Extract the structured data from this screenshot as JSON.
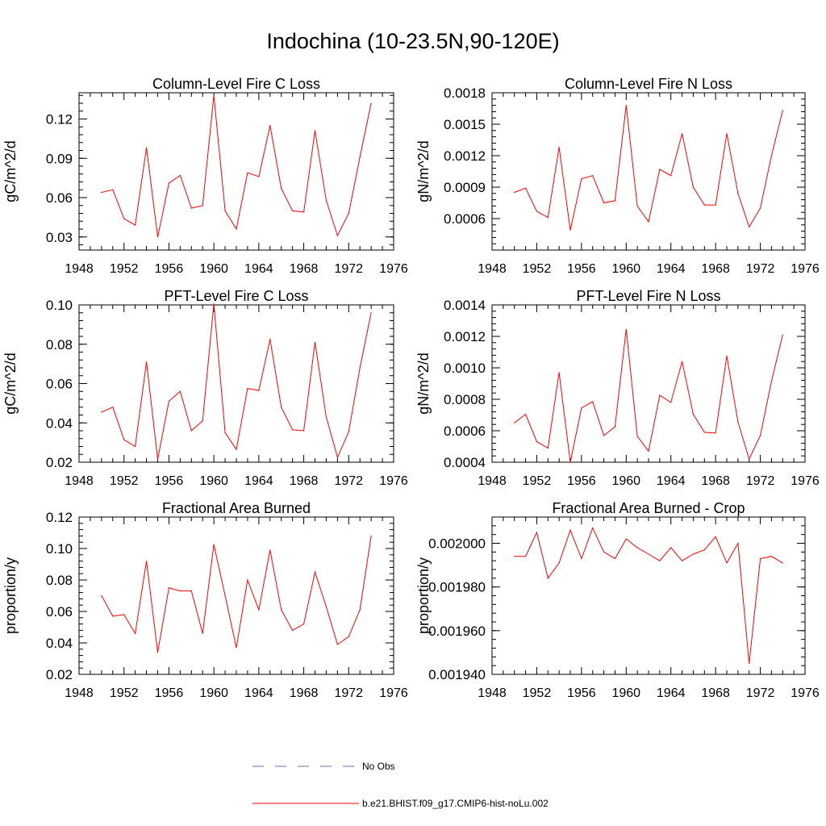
{
  "title": "Indochina (10-23.5N,90-120E)",
  "series_color": "#ff0000",
  "obs_color": "#6670b0",
  "legend": [
    {
      "label": "No Obs",
      "style": "dashed"
    },
    {
      "label": "b.e21.BHIST.f09_g17.CMIP6-hist-noLu.002",
      "style": "solid"
    }
  ],
  "chart_data": [
    {
      "type": "line",
      "title": "Column-Level Fire C Loss",
      "ylabel": "gC/m^2/d",
      "xlim": [
        1948,
        1976
      ],
      "ylim": [
        0.02,
        0.14
      ],
      "xticks": [
        "1948",
        "1952",
        "1956",
        "1960",
        "1964",
        "1968",
        "1972",
        "1976"
      ],
      "yticks": [
        "0.03",
        "0.06",
        "0.09",
        "0.12"
      ],
      "ytick_values": [
        0.03,
        0.06,
        0.09,
        0.12
      ],
      "x": [
        1950,
        1951,
        1952,
        1953,
        1954,
        1955,
        1956,
        1957,
        1958,
        1959,
        1960,
        1961,
        1962,
        1963,
        1964,
        1965,
        1966,
        1967,
        1968,
        1969,
        1970,
        1971,
        1972,
        1973,
        1974
      ],
      "values": [
        0.064,
        0.066,
        0.044,
        0.039,
        0.098,
        0.03,
        0.071,
        0.077,
        0.052,
        0.054,
        0.138,
        0.05,
        0.036,
        0.079,
        0.076,
        0.115,
        0.067,
        0.05,
        0.049,
        0.111,
        0.058,
        0.031,
        0.048,
        0.091,
        0.132
      ]
    },
    {
      "type": "line",
      "title": "Column-Level Fire N Loss",
      "ylabel": "gN/m^2/d",
      "xlim": [
        1948,
        1976
      ],
      "ylim": [
        0.0003,
        0.0018
      ],
      "xticks": [
        "1948",
        "1952",
        "1956",
        "1960",
        "1964",
        "1968",
        "1972",
        "1976"
      ],
      "yticks": [
        "0.0006",
        "0.0009",
        "0.0012",
        "0.0015",
        "0.0018"
      ],
      "ytick_values": [
        0.0006,
        0.0009,
        0.0012,
        0.0015,
        0.0018
      ],
      "x": [
        1950,
        1951,
        1952,
        1953,
        1954,
        1955,
        1956,
        1957,
        1958,
        1959,
        1960,
        1961,
        1962,
        1963,
        1964,
        1965,
        1966,
        1967,
        1968,
        1969,
        1970,
        1971,
        1972,
        1973,
        1974
      ],
      "values": [
        0.00085,
        0.00089,
        0.00067,
        0.00061,
        0.00128,
        0.00049,
        0.00098,
        0.00101,
        0.00075,
        0.00077,
        0.00168,
        0.00072,
        0.00057,
        0.00107,
        0.00101,
        0.00141,
        0.0009,
        0.00073,
        0.00073,
        0.00141,
        0.00084,
        0.00052,
        0.0007,
        0.0012,
        0.00163
      ]
    },
    {
      "type": "line",
      "title": "PFT-Level Fire C Loss",
      "ylabel": "gC/m^2/d",
      "xlim": [
        1948,
        1976
      ],
      "ylim": [
        0.02,
        0.1
      ],
      "xticks": [
        "1948",
        "1952",
        "1956",
        "1960",
        "1964",
        "1968",
        "1972",
        "1976"
      ],
      "yticks": [
        "0.02",
        "0.04",
        "0.06",
        "0.08",
        "0.10"
      ],
      "ytick_values": [
        0.02,
        0.04,
        0.06,
        0.08,
        0.1
      ],
      "x": [
        1950,
        1951,
        1952,
        1953,
        1954,
        1955,
        1956,
        1957,
        1958,
        1959,
        1960,
        1961,
        1962,
        1963,
        1964,
        1965,
        1966,
        1967,
        1968,
        1969,
        1970,
        1971,
        1972,
        1973,
        1974
      ],
      "values": [
        0.0455,
        0.048,
        0.0315,
        0.028,
        0.071,
        0.0215,
        0.051,
        0.056,
        0.036,
        0.041,
        0.1005,
        0.035,
        0.0265,
        0.0575,
        0.0565,
        0.0825,
        0.048,
        0.0365,
        0.036,
        0.081,
        0.043,
        0.0225,
        0.0355,
        0.068,
        0.096
      ]
    },
    {
      "type": "line",
      "title": "PFT-Level Fire N Loss",
      "ylabel": "gN/m^2/d",
      "xlim": [
        1948,
        1976
      ],
      "ylim": [
        0.0004,
        0.0014
      ],
      "xticks": [
        "1948",
        "1952",
        "1956",
        "1960",
        "1964",
        "1968",
        "1972",
        "1976"
      ],
      "yticks": [
        "0.0004",
        "0.0006",
        "0.0008",
        "0.0010",
        "0.0012",
        "0.0014"
      ],
      "ytick_values": [
        0.0004,
        0.0006,
        0.0008,
        0.001,
        0.0012,
        0.0014
      ],
      "x": [
        1950,
        1951,
        1952,
        1953,
        1954,
        1955,
        1956,
        1957,
        1958,
        1959,
        1960,
        1961,
        1962,
        1963,
        1964,
        1965,
        1966,
        1967,
        1968,
        1969,
        1970,
        1971,
        1972,
        1973,
        1974
      ],
      "values": [
        0.00065,
        0.000705,
        0.00053,
        0.00049,
        0.00097,
        0.0004,
        0.000745,
        0.000785,
        0.00057,
        0.000625,
        0.001245,
        0.000565,
        0.00047,
        0.000825,
        0.00078,
        0.00104,
        0.000705,
        0.00059,
        0.000585,
        0.001075,
        0.000655,
        0.00042,
        0.00057,
        0.000915,
        0.00121
      ]
    },
    {
      "type": "line",
      "title": "Fractional Area Burned",
      "ylabel": "proportion/y",
      "xlim": [
        1948,
        1976
      ],
      "ylim": [
        0.02,
        0.12
      ],
      "xticks": [
        "1948",
        "1952",
        "1956",
        "1960",
        "1964",
        "1968",
        "1972",
        "1976"
      ],
      "yticks": [
        "0.02",
        "0.04",
        "0.06",
        "0.08",
        "0.10",
        "0.12"
      ],
      "ytick_values": [
        0.02,
        0.04,
        0.06,
        0.08,
        0.1,
        0.12
      ],
      "x": [
        1950,
        1951,
        1952,
        1953,
        1954,
        1955,
        1956,
        1957,
        1958,
        1959,
        1960,
        1961,
        1962,
        1963,
        1964,
        1965,
        1966,
        1967,
        1968,
        1969,
        1970,
        1971,
        1972,
        1973,
        1974
      ],
      "values": [
        0.07,
        0.057,
        0.058,
        0.046,
        0.092,
        0.034,
        0.075,
        0.073,
        0.073,
        0.046,
        0.1025,
        0.07,
        0.037,
        0.08,
        0.061,
        0.099,
        0.061,
        0.048,
        0.052,
        0.085,
        0.063,
        0.039,
        0.044,
        0.061,
        0.108
      ]
    },
    {
      "type": "line",
      "title": "Fractional Area Burned - Crop",
      "ylabel": "proportion/y",
      "xlim": [
        1948,
        1976
      ],
      "ylim": [
        0.00194,
        0.002012
      ],
      "xticks": [
        "1948",
        "1952",
        "1956",
        "1960",
        "1964",
        "1968",
        "1972",
        "1976"
      ],
      "yticks": [
        "0.001940",
        "0.001960",
        "0.001980",
        "0.002000"
      ],
      "ytick_values": [
        0.00194,
        0.00196,
        0.00198,
        0.002
      ],
      "x": [
        1950,
        1951,
        1952,
        1953,
        1954,
        1955,
        1956,
        1957,
        1958,
        1959,
        1960,
        1961,
        1962,
        1963,
        1964,
        1965,
        1966,
        1967,
        1968,
        1969,
        1970,
        1971,
        1972,
        1973,
        1974
      ],
      "values": [
        0.001994,
        0.001994,
        0.002005,
        0.001984,
        0.001991,
        0.002006,
        0.001993,
        0.002007,
        0.001996,
        0.001993,
        0.002002,
        0.001998,
        0.001995,
        0.001992,
        0.001998,
        0.001992,
        0.001995,
        0.001997,
        0.002003,
        0.001991,
        0.002,
        0.001945,
        0.001993,
        0.001994,
        0.001991
      ]
    }
  ]
}
